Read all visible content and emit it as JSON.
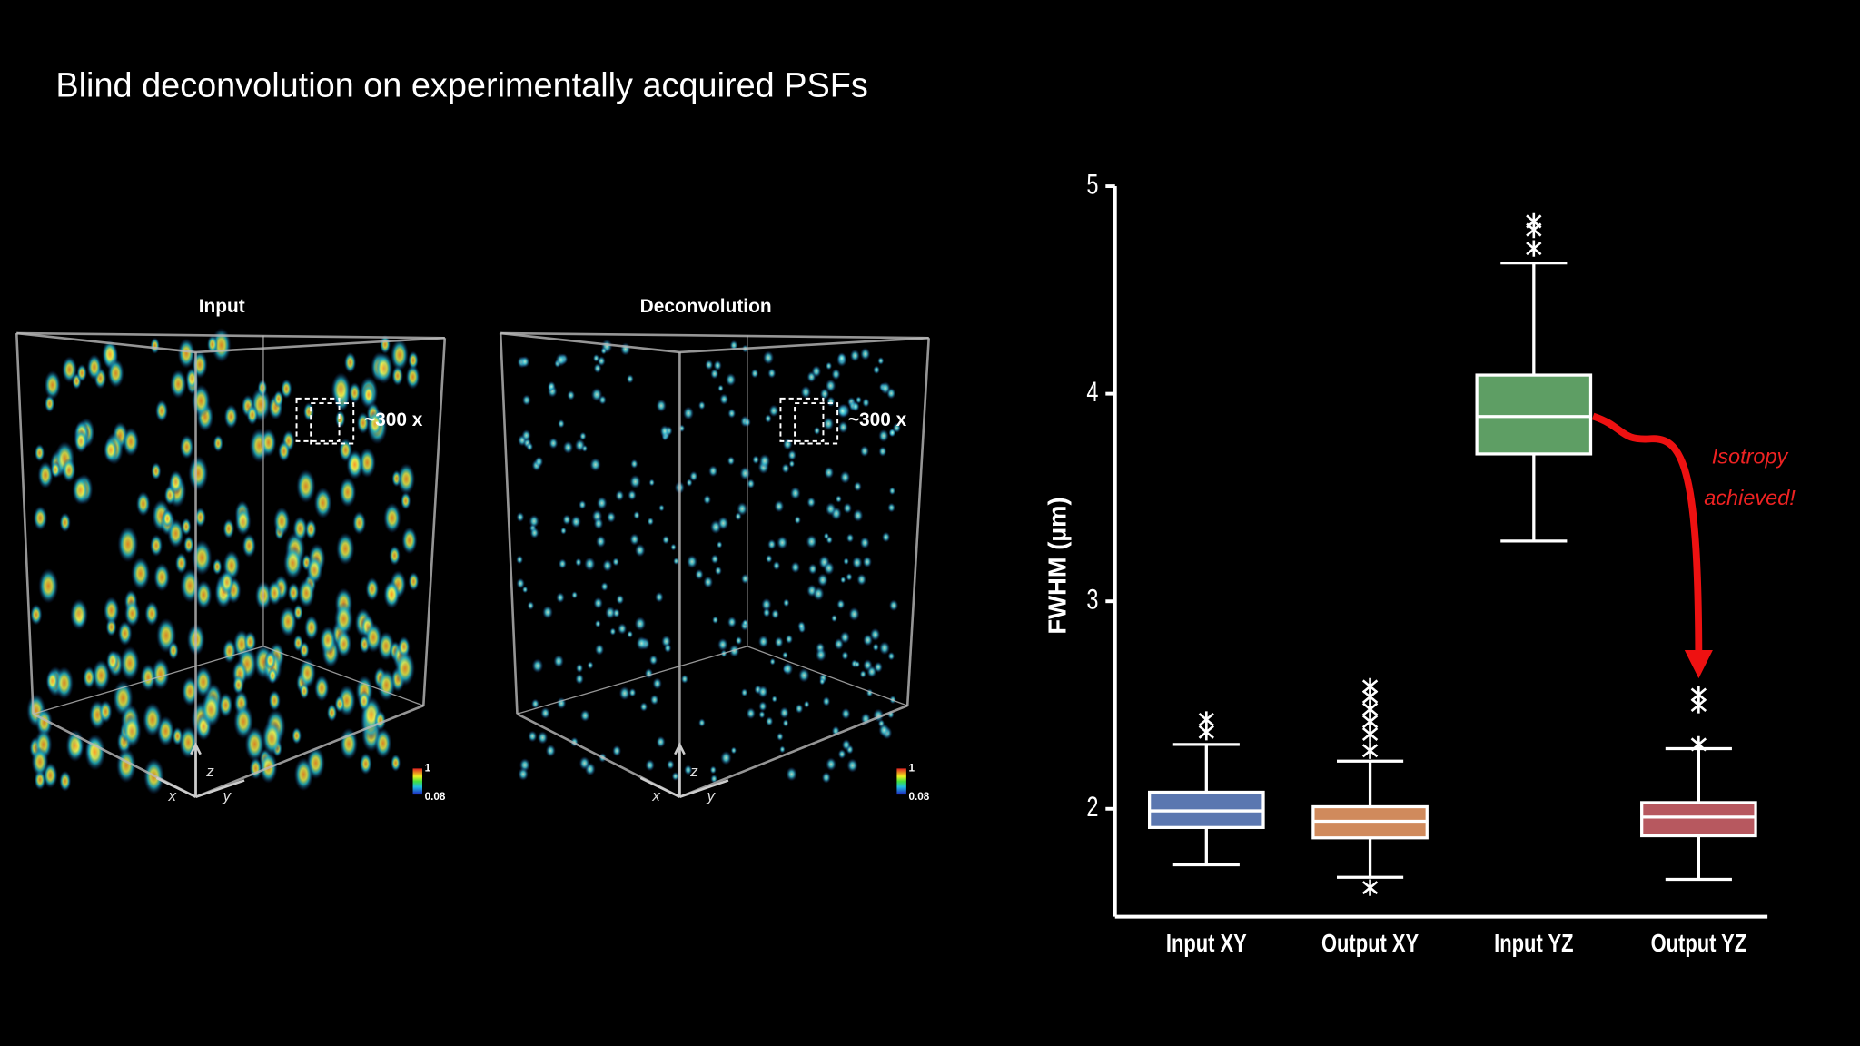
{
  "title": "Blind deconvolution on experimentally acquired PSFs",
  "panels": [
    {
      "label": "Input",
      "annotation": "~300 x",
      "axes": [
        "x",
        "y",
        "z"
      ],
      "colorbar": [
        1,
        0.08
      ]
    },
    {
      "label": "Deconvolution",
      "annotation": "~300 x",
      "axes": [
        "x",
        "y",
        "z"
      ],
      "colorbar": [
        1,
        0.08
      ]
    }
  ],
  "chart_data": {
    "type": "box",
    "y_label": "FWHM (µm)",
    "categories": [
      "Input XY",
      "Output XY",
      "Input YZ",
      "Output YZ"
    ],
    "boxes": [
      {
        "whisker_low": 1.73,
        "q1": 1.91,
        "median": 1.99,
        "q3": 2.08,
        "whisker_high": 2.31,
        "outliers": [
          2.43,
          2.37
        ],
        "color": "#5b77b0"
      },
      {
        "whisker_low": 1.67,
        "q1": 1.86,
        "median": 1.94,
        "q3": 2.01,
        "whisker_high": 2.23,
        "outliers": [
          2.59,
          2.54,
          2.48,
          2.42,
          2.36,
          2.28,
          1.62
        ],
        "color": "#d08a5c"
      },
      {
        "whisker_low": 3.29,
        "q1": 3.71,
        "median": 3.89,
        "q3": 4.09,
        "whisker_high": 4.63,
        "outliers": [
          4.83,
          4.79,
          4.7
        ],
        "color": "#5e9e64"
      },
      {
        "whisker_low": 1.66,
        "q1": 1.87,
        "median": 1.96,
        "q3": 2.03,
        "whisker_high": 2.29,
        "outliers": [
          2.55,
          2.5,
          2.31
        ],
        "color": "#b7585f"
      }
    ],
    "ylim": [
      1.48,
      5
    ],
    "yticks": [
      2,
      3,
      4,
      5
    ],
    "annotation": [
      "Isotropy",
      "achieved!"
    ]
  }
}
